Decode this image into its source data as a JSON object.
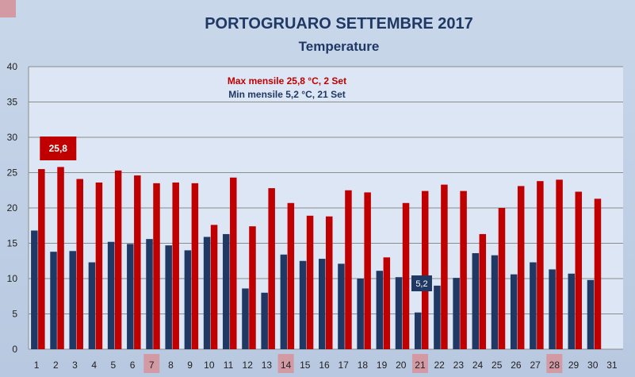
{
  "chart_data": {
    "type": "bar",
    "title": "PORTOGRUARO SETTEMBRE 2017",
    "subtitle": "Temperature",
    "xlabel": "",
    "ylabel": "",
    "ylim": [
      0,
      40
    ],
    "yticks": [
      "0",
      "5",
      "10",
      "15",
      "20",
      "25",
      "30",
      "35",
      "40"
    ],
    "categories": [
      "1",
      "2",
      "3",
      "4",
      "5",
      "6",
      "7",
      "8",
      "9",
      "10",
      "11",
      "12",
      "13",
      "14",
      "15",
      "16",
      "17",
      "18",
      "19",
      "20",
      "21",
      "22",
      "23",
      "24",
      "25",
      "26",
      "27",
      "28",
      "29",
      "30",
      "31"
    ],
    "highlighted_categories": [
      "7",
      "14",
      "21",
      "28"
    ],
    "grid": true,
    "legend": "none",
    "series": [
      {
        "color": "#c00000",
        "values": [
          25.5,
          25.8,
          24.1,
          23.6,
          25.3,
          24.6,
          23.5,
          23.6,
          23.5,
          17.6,
          24.3,
          17.4,
          22.8,
          20.7,
          18.9,
          18.8,
          22.5,
          22.2,
          13.0,
          20.7,
          22.4,
          23.3,
          22.4,
          16.3,
          20.0,
          23.1,
          23.8,
          24.0,
          22.3,
          21.3,
          null
        ]
      },
      {
        "color": "#1f3864",
        "values": [
          16.8,
          13.8,
          13.9,
          12.3,
          15.2,
          14.9,
          15.6,
          14.7,
          14.0,
          15.9,
          16.3,
          8.6,
          8.0,
          13.4,
          12.5,
          12.8,
          12.1,
          10.0,
          11.1,
          10.2,
          5.2,
          9.0,
          10.1,
          13.6,
          13.3,
          10.6,
          12.3,
          11.3,
          10.7,
          9.8,
          null
        ]
      }
    ],
    "annotations": {
      "max_text": "Max mensile  25,8 °C, 2 Set",
      "min_text": "Min mensile  5,2 °C, 21 Set",
      "max_label": "25,8",
      "min_label": "5,2",
      "max_index": 1,
      "min_index": 20
    }
  },
  "colors": {
    "plot_background": "#dde6f4",
    "grid": "#8c8c8c",
    "highlight": "#d39aa4"
  }
}
